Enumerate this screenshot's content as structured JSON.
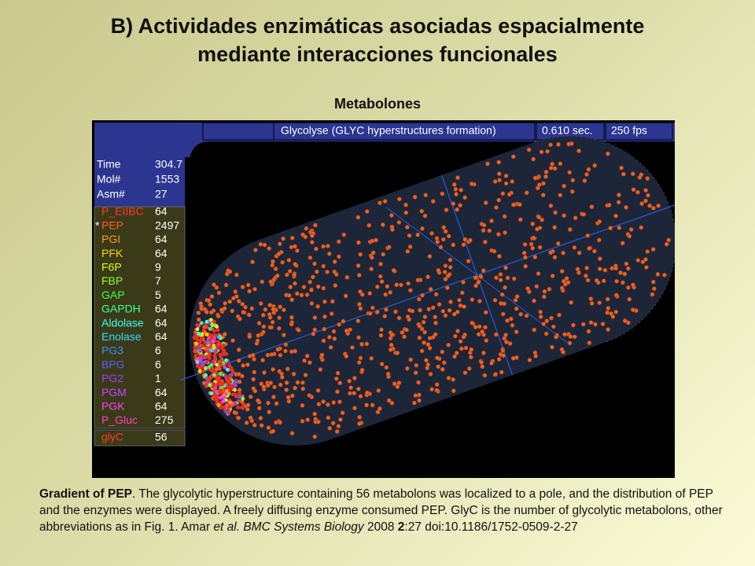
{
  "title_line_1": "B) Actividades enzimáticas asociadas espacialmente",
  "title_line_2": "mediante interacciones funcionales",
  "subtitle": "Metabolones",
  "screen": {
    "header": {
      "label": "Glycolyse (GLYC hyperstructures formation)",
      "time": "0.610 sec.",
      "fps": "250 fps"
    },
    "stats": [
      {
        "name": "Time",
        "value": 304.7
      },
      {
        "name": "Mol#",
        "value": 1553
      },
      {
        "name": "Asm#",
        "value": 27
      }
    ],
    "marker": "*",
    "species": [
      {
        "name": "P_EIIBC",
        "count": 64,
        "color": "#ff3a2a"
      },
      {
        "name": "PEP",
        "count": 2497,
        "color": "#ff5a20"
      },
      {
        "name": "PGI",
        "count": 64,
        "color": "#ff9a20"
      },
      {
        "name": "PFK",
        "count": 64,
        "color": "#ffd400"
      },
      {
        "name": "F6P",
        "count": 9,
        "color": "#d8ff10"
      },
      {
        "name": "FBP",
        "count": 7,
        "color": "#90ff30"
      },
      {
        "name": "GAP",
        "count": 5,
        "color": "#40ff40"
      },
      {
        "name": "GAPDH",
        "count": 64,
        "color": "#40ff90"
      },
      {
        "name": "Aldolase",
        "count": 64,
        "color": "#40ffee"
      },
      {
        "name": "Enolase",
        "count": 64,
        "color": "#30d8ff"
      },
      {
        "name": "PG3",
        "count": 6,
        "color": "#3a8cff"
      },
      {
        "name": "BPG",
        "count": 6,
        "color": "#5a5cff"
      },
      {
        "name": "PG2",
        "count": 1,
        "color": "#9a40ff"
      },
      {
        "name": "PGM",
        "count": 64,
        "color": "#d040ff"
      },
      {
        "name": "PGK",
        "count": 64,
        "color": "#ff40ff"
      },
      {
        "name": "P_Gluc",
        "count": 275,
        "color": "#ff40c0"
      }
    ],
    "glyc": {
      "name": "glyC",
      "count": 56,
      "color": "#ff3a2a"
    }
  },
  "caption": {
    "lead": "Gradient of PEP",
    "text_1": ". The glycolytic hyperstructure containing 56 metabolons was localized to a pole, and the distribution of PEP and the enzymes were displayed. A freely diffusing enzyme consumed PEP. GlyC is the number of glycolytic metabolons, other abbreviations as in Fig. 1. Amar ",
    "journal": "et al. BMC Systems Biology",
    "text_2": " 2008 ",
    "volume": "2",
    "text_3": ":27   doi:10.1186/1752-0509-2-27"
  }
}
